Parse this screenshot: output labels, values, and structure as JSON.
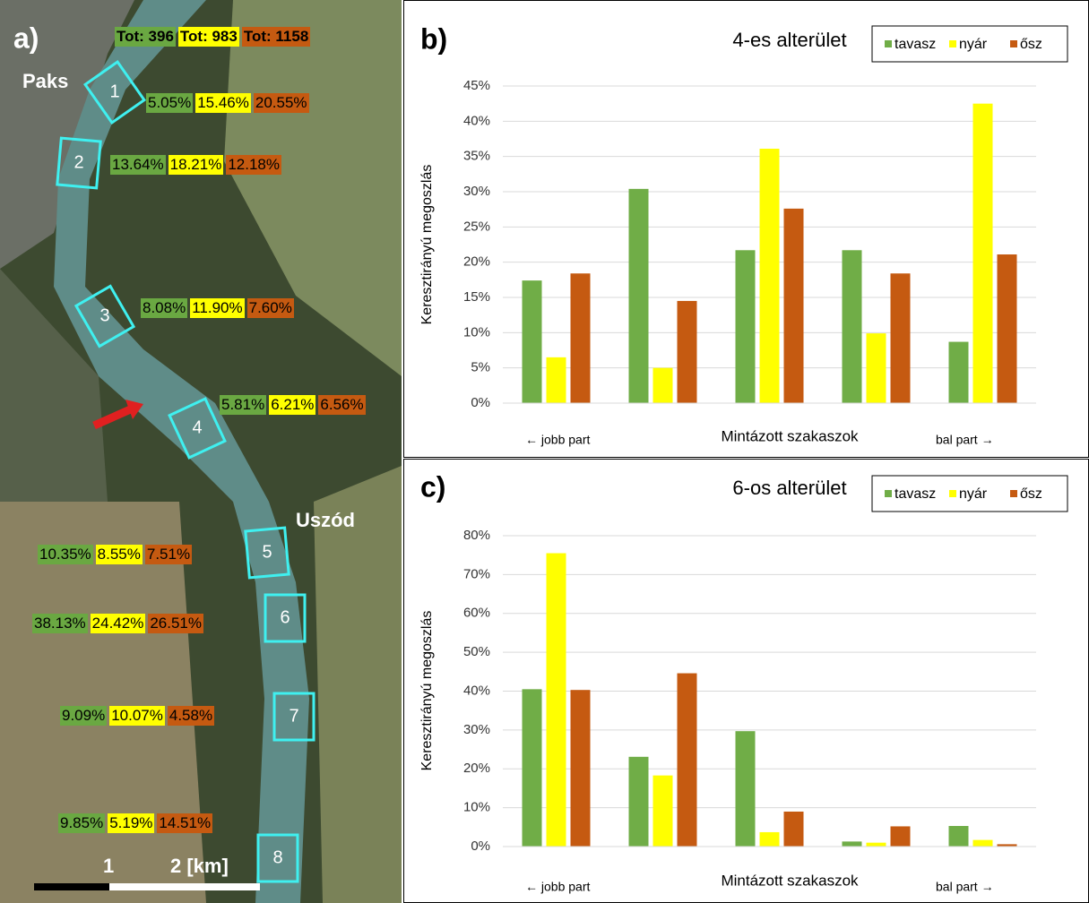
{
  "map": {
    "panel_label": "a)",
    "totals": [
      "Tot: 396",
      "Tot: 983",
      "Tot: 1158"
    ],
    "places": [
      "Paks",
      "Uszód"
    ],
    "scale": [
      "1",
      "2 [km]"
    ],
    "regions": [
      {
        "number": "1",
        "shares": [
          "5.05%",
          "15.46%",
          "20.55%"
        ]
      },
      {
        "number": "2",
        "shares": [
          "13.64%",
          "18.21%",
          "12.18%"
        ]
      },
      {
        "number": "3",
        "shares": [
          "8.08%",
          "11.90%",
          "7.60%"
        ]
      },
      {
        "number": "4",
        "shares": [
          "5.81%",
          "6.21%",
          "6.56%"
        ]
      },
      {
        "number": "5",
        "shares": [
          "10.35%",
          "8.55%",
          "7.51%"
        ]
      },
      {
        "number": "6",
        "shares": [
          "38.13%",
          "24.42%",
          "26.51%"
        ]
      },
      {
        "number": "7",
        "shares": [
          "9.09%",
          "10.07%",
          "4.58%"
        ]
      },
      {
        "number": "8",
        "shares": [
          "9.85%",
          "5.19%",
          "14.51%"
        ]
      }
    ]
  },
  "chart_data": [
    {
      "type": "bar",
      "panel_label": "b)",
      "title": "4-es alterület",
      "x_label": "Mintázott szakaszok",
      "y_label": "Keresztirányú megoszlás",
      "annotations": [
        "← jobb part",
        "bal part →"
      ],
      "categories": [
        null,
        null,
        null,
        null,
        null
      ],
      "series": [
        {
          "name": "tavasz",
          "color": "#70ad47",
          "values": [
            17.4,
            30.4,
            21.7,
            21.7,
            8.7
          ]
        },
        {
          "name": "nyár",
          "color": "#ffff00",
          "values": [
            6.5,
            5.0,
            36.1,
            9.9,
            42.5
          ]
        },
        {
          "name": "ősz",
          "color": "#c55a11",
          "values": [
            18.4,
            14.5,
            27.6,
            18.4,
            21.1
          ]
        }
      ],
      "ylim": [
        0,
        45
      ],
      "yticks": [
        {
          "value": 0,
          "label": "0%"
        },
        {
          "value": 5,
          "label": "5%"
        },
        {
          "value": 10,
          "label": "10%"
        },
        {
          "value": 15,
          "label": "15%"
        },
        {
          "value": 20,
          "label": "20%"
        },
        {
          "value": 25,
          "label": "25%"
        },
        {
          "value": 30,
          "label": "30%"
        },
        {
          "value": 35,
          "label": "35%"
        },
        {
          "value": 40,
          "label": "40%"
        },
        {
          "value": 45,
          "label": "45%"
        }
      ],
      "grid": true,
      "legend": "top-right"
    },
    {
      "type": "bar",
      "panel_label": "c)",
      "title": "6-os alterület",
      "x_label": "Mintázott szakaszok",
      "y_label": "Keresztirányú megoszlás",
      "annotations": [
        "← jobb part",
        "bal part →"
      ],
      "categories": [
        null,
        null,
        null,
        null,
        null
      ],
      "series": [
        {
          "name": "tavasz",
          "color": "#70ad47",
          "values": [
            40.5,
            23.1,
            29.7,
            1.3,
            5.3
          ]
        },
        {
          "name": "nyár",
          "color": "#ffff00",
          "values": [
            75.5,
            18.3,
            3.7,
            1.0,
            1.7
          ]
        },
        {
          "name": "ősz",
          "color": "#c55a11",
          "values": [
            40.3,
            44.6,
            9.0,
            5.2,
            0.6
          ]
        }
      ],
      "ylim": [
        0,
        80
      ],
      "yticks": [
        {
          "value": 0,
          "label": "0%"
        },
        {
          "value": 10,
          "label": "10%"
        },
        {
          "value": 20,
          "label": "20%"
        },
        {
          "value": 30,
          "label": "30%"
        },
        {
          "value": 40,
          "label": "40%"
        },
        {
          "value": 50,
          "label": "50%"
        },
        {
          "value": 60,
          "label": "60%"
        },
        {
          "value": 70,
          "label": "70%"
        },
        {
          "value": 80,
          "label": "80%"
        }
      ],
      "grid": true,
      "legend": "top-right"
    }
  ]
}
